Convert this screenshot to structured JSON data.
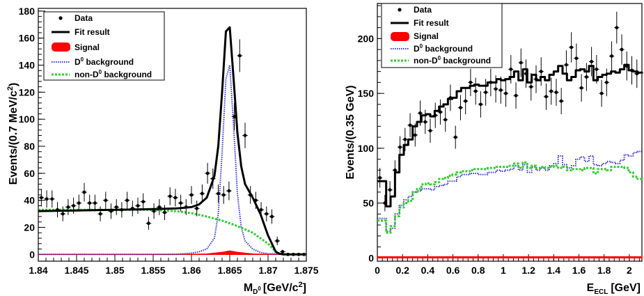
{
  "chart_data": [
    {
      "type": "line",
      "xlabel": "M_D0 [GeV/c2]",
      "xlabel_main": "M",
      "xlabel_sub": "D",
      "xlabel_subsup": "0",
      "xlabel_unit": "[GeV/c",
      "xlabel_unit_sup": "2",
      "xlabel_unit_end": "]",
      "ylabel": "Events/(0.7 MeV/c2)",
      "ylabel_main": "Events/(0.7 MeV/c",
      "ylabel_sup": "2",
      "ylabel_end": ")",
      "xlim": [
        1.84,
        1.875
      ],
      "ylim": [
        -5,
        182
      ],
      "xticks": [
        "1.84",
        "1.845",
        "1.85",
        "1.855",
        "1.86",
        "1.865",
        "1.87",
        "1.875"
      ],
      "xtick_values": [
        1.84,
        1.845,
        1.85,
        1.855,
        1.86,
        1.865,
        1.87,
        1.875
      ],
      "yticks": [
        "0",
        "20",
        "40",
        "60",
        "80",
        "100",
        "120",
        "140",
        "160",
        "180"
      ],
      "ytick_values": [
        0,
        20,
        40,
        60,
        80,
        100,
        120,
        140,
        160,
        180
      ],
      "legend": {
        "position": "top-left",
        "entries": [
          {
            "label": "Data",
            "style": "marker"
          },
          {
            "label": "Fit result",
            "style": "line-black"
          },
          {
            "label": "Signal",
            "style": "fill-red"
          },
          {
            "label": "D0 background",
            "main": "D",
            "sup": "0",
            "rest": " background",
            "style": "dotted-blue"
          },
          {
            "label": "non-D0 background",
            "main": "non-D",
            "sup": "0",
            "rest": " background",
            "style": "dotted-green"
          }
        ]
      },
      "colors": {
        "fit": "#000000",
        "signal": "#ff0000",
        "d0_bkg": "#3333cc",
        "nond0_bkg": "#33cc33",
        "data": "#000000"
      },
      "series": [
        {
          "name": "Data",
          "x": [
            1.8404,
            1.8411,
            1.8418,
            1.8425,
            1.8432,
            1.8439,
            1.8446,
            1.8453,
            1.846,
            1.8467,
            1.8474,
            1.8481,
            1.8488,
            1.8495,
            1.8502,
            1.8509,
            1.8516,
            1.8523,
            1.853,
            1.8537,
            1.8544,
            1.8551,
            1.8558,
            1.8565,
            1.8572,
            1.8579,
            1.8586,
            1.8593,
            1.86,
            1.8607,
            1.8614,
            1.8621,
            1.8628,
            1.8635,
            1.8642,
            1.8649,
            1.8656,
            1.8663,
            1.867,
            1.8677,
            1.8684,
            1.8691,
            1.8698,
            1.8705,
            1.8712,
            1.8719,
            1.8726,
            1.8733,
            1.874,
            1.8747
          ],
          "y": [
            42,
            41,
            41,
            33,
            30,
            35,
            36,
            38,
            46,
            38,
            38,
            30,
            40,
            32,
            35,
            33,
            40,
            34,
            36,
            39,
            23,
            32,
            35,
            31,
            43,
            42,
            38,
            35,
            44,
            34,
            45,
            60,
            56,
            45,
            44,
            47,
            102,
            147,
            88,
            44,
            40,
            33,
            30,
            28,
            10,
            2,
            0,
            0,
            0,
            0
          ],
          "err": [
            6.5,
            6.4,
            6.4,
            5.7,
            5.5,
            5.9,
            6,
            6.2,
            6.8,
            6.2,
            6.2,
            5.5,
            6.3,
            5.7,
            5.9,
            5.7,
            6.3,
            5.8,
            6,
            6.2,
            4.8,
            5.7,
            5.9,
            5.6,
            6.6,
            6.5,
            6.2,
            5.9,
            6.6,
            5.8,
            6.7,
            7.7,
            7.5,
            6.7,
            6.6,
            6.9,
            10.1,
            12.1,
            9.4,
            6.6,
            6.3,
            5.7,
            5.5,
            5.3,
            3.2,
            1.4,
            0,
            0,
            0,
            0
          ]
        },
        {
          "name": "Fit result",
          "x": [
            1.84,
            1.845,
            1.85,
            1.855,
            1.858,
            1.86,
            1.861,
            1.862,
            1.863,
            1.8635,
            1.864,
            1.8645,
            1.865,
            1.8655,
            1.866,
            1.8665,
            1.867,
            1.868,
            1.869,
            1.8695,
            1.87,
            1.8705,
            1.871,
            1.8715,
            1.872,
            1.875
          ],
          "y": [
            32,
            32.5,
            33,
            33.5,
            34,
            35,
            37,
            42,
            58,
            80,
            120,
            165,
            168,
            130,
            90,
            65,
            52,
            42,
            30,
            22,
            14,
            8,
            2,
            0.5,
            0,
            0
          ]
        },
        {
          "name": "Signal",
          "x": [
            1.84,
            1.855,
            1.86,
            1.862,
            1.864,
            1.865,
            1.866,
            1.868,
            1.87,
            1.875
          ],
          "y": [
            0,
            0,
            0.1,
            0.3,
            1.5,
            2.5,
            1.5,
            0.3,
            0.05,
            0
          ]
        },
        {
          "name": "D0 background",
          "x": [
            1.84,
            1.858,
            1.86,
            1.861,
            1.862,
            1.863,
            1.8635,
            1.864,
            1.8645,
            1.865,
            1.8655,
            1.866,
            1.8665,
            1.867,
            1.868,
            1.869,
            1.87,
            1.875
          ],
          "y": [
            0,
            0,
            1,
            2,
            4,
            12,
            30,
            75,
            130,
            140,
            95,
            45,
            20,
            10,
            4,
            1.5,
            0.5,
            0
          ]
        },
        {
          "name": "non-D0 background",
          "x": [
            1.84,
            1.845,
            1.85,
            1.855,
            1.858,
            1.86,
            1.862,
            1.864,
            1.866,
            1.868,
            1.869,
            1.87,
            1.8705,
            1.871,
            1.8715,
            1.872,
            1.875
          ],
          "y": [
            33,
            33,
            33,
            33,
            32,
            30.5,
            28,
            25,
            21,
            16,
            12,
            8,
            5,
            2,
            0.5,
            0,
            0
          ]
        }
      ]
    },
    {
      "type": "line",
      "xlabel": "E_ECL [GeV]",
      "xlabel_main": "E",
      "xlabel_sub": "ECL",
      "xlabel_unit": "[GeV]",
      "ylabel": "Events/(0.35 GeV)",
      "xlim": [
        0,
        2.1
      ],
      "ylim": [
        -3,
        232
      ],
      "xticks": [
        "0",
        "0.2",
        "0.4",
        "0.6",
        "0.8",
        "1",
        "1.2",
        "1.4",
        "1.6",
        "1.8",
        "2"
      ],
      "xtick_values": [
        0,
        0.2,
        0.4,
        0.6,
        0.8,
        1,
        1.2,
        1.4,
        1.6,
        1.8,
        2
      ],
      "yticks": [
        "0",
        "50",
        "100",
        "150",
        "200"
      ],
      "ytick_values": [
        0,
        50,
        100,
        150,
        200
      ],
      "legend": {
        "position": "top-left",
        "entries": [
          {
            "label": "Data",
            "style": "marker"
          },
          {
            "label": "Fit result",
            "style": "line-black"
          },
          {
            "label": "Signal",
            "style": "fill-red"
          },
          {
            "label": "D0 background",
            "main": "D",
            "sup": "0",
            "rest": " background",
            "style": "dotted-blue"
          },
          {
            "label": "non-D0 background",
            "main": "non-D",
            "sup": "0",
            "rest": " background",
            "style": "dotted-green"
          }
        ]
      },
      "colors": {
        "fit": "#000000",
        "signal": "#ff0000",
        "d0_bkg": "#3333cc",
        "nond0_bkg": "#33cc33",
        "data": "#000000"
      },
      "series": [
        {
          "name": "Data",
          "x": [
            0.02,
            0.06,
            0.1,
            0.14,
            0.18,
            0.22,
            0.26,
            0.3,
            0.34,
            0.38,
            0.42,
            0.46,
            0.5,
            0.54,
            0.58,
            0.62,
            0.66,
            0.7,
            0.74,
            0.78,
            0.82,
            0.86,
            0.9,
            0.94,
            0.98,
            1.02,
            1.06,
            1.1,
            1.14,
            1.18,
            1.22,
            1.26,
            1.3,
            1.34,
            1.38,
            1.42,
            1.46,
            1.5,
            1.54,
            1.58,
            1.62,
            1.66,
            1.7,
            1.74,
            1.78,
            1.82,
            1.86,
            1.9,
            1.94,
            1.98,
            2.02,
            2.06
          ],
          "y": [
            73,
            50,
            62,
            80,
            101,
            108,
            121,
            112,
            132,
            124,
            116,
            130,
            133,
            126,
            146,
            110,
            137,
            143,
            160,
            152,
            140,
            151,
            160,
            154,
            153,
            150,
            172,
            148,
            178,
            168,
            156,
            163,
            170,
            147,
            152,
            151,
            143,
            176,
            192,
            182,
            155,
            165,
            179,
            172,
            150,
            160,
            184,
            210,
            190,
            175,
            171,
            168
          ],
          "err": [
            9,
            7.5,
            8,
            9,
            10,
            10.5,
            11,
            10.5,
            11.5,
            11,
            11,
            11.5,
            11.5,
            11,
            12,
            10.5,
            11.5,
            12,
            12.5,
            12.3,
            12,
            12.2,
            12.6,
            12.4,
            12.4,
            12.2,
            13,
            12,
            13,
            13,
            12.5,
            12.7,
            13,
            12,
            12.3,
            12.3,
            12,
            13.3,
            13.8,
            13.5,
            12.5,
            12.8,
            13.4,
            13,
            12.2,
            12.6,
            13.5,
            14.5,
            13.8,
            13.2,
            13,
            13
          ]
        },
        {
          "name": "Fit result",
          "x": [
            0,
            0.035,
            0.07,
            0.105,
            0.14,
            0.175,
            0.21,
            0.245,
            0.28,
            0.315,
            0.35,
            0.385,
            0.42,
            0.455,
            0.49,
            0.525,
            0.56,
            0.595,
            0.63,
            0.665,
            0.7,
            0.735,
            0.77,
            0.805,
            0.84,
            0.875,
            0.91,
            0.945,
            0.98,
            1.015,
            1.05,
            1.085,
            1.12,
            1.155,
            1.19,
            1.225,
            1.26,
            1.295,
            1.33,
            1.365,
            1.4,
            1.435,
            1.47,
            1.505,
            1.54,
            1.575,
            1.61,
            1.645,
            1.68,
            1.715,
            1.75,
            1.785,
            1.82,
            1.855,
            1.89,
            1.925,
            1.96,
            1.995,
            2.03,
            2.065,
            2.1
          ],
          "y": [
            70,
            70,
            47,
            56,
            78,
            94,
            103,
            108,
            120,
            124,
            130,
            131,
            129,
            134,
            138,
            140,
            145,
            146,
            152,
            155,
            155,
            157,
            158,
            157,
            157,
            160,
            160,
            163,
            162,
            163,
            165,
            170,
            162,
            172,
            160,
            167,
            162,
            165,
            162,
            167,
            170,
            175,
            168,
            162,
            165,
            171,
            172,
            170,
            175,
            162,
            165,
            167,
            168,
            170,
            169,
            172,
            176,
            171,
            170,
            169,
            168
          ]
        },
        {
          "name": "Signal",
          "x": [
            0,
            0.5,
            1.0,
            1.5,
            2.0,
            2.1
          ],
          "y": [
            1,
            1,
            1,
            1,
            1,
            1
          ]
        },
        {
          "name": "D0 background",
          "x": [
            0,
            0.035,
            0.07,
            0.105,
            0.14,
            0.175,
            0.21,
            0.245,
            0.28,
            0.315,
            0.35,
            0.385,
            0.42,
            0.455,
            0.49,
            0.525,
            0.56,
            0.595,
            0.63,
            0.665,
            0.7,
            0.735,
            0.77,
            0.805,
            0.84,
            0.875,
            0.91,
            0.945,
            0.98,
            1.015,
            1.05,
            1.085,
            1.12,
            1.155,
            1.19,
            1.225,
            1.26,
            1.295,
            1.33,
            1.365,
            1.4,
            1.435,
            1.47,
            1.505,
            1.54,
            1.575,
            1.61,
            1.645,
            1.68,
            1.715,
            1.75,
            1.785,
            1.82,
            1.855,
            1.89,
            1.925,
            1.96,
            1.995,
            2.03,
            2.065,
            2.1
          ],
          "y": [
            36,
            36,
            24,
            27,
            40,
            48,
            53,
            56,
            60,
            61,
            63,
            63,
            62,
            65,
            66,
            67,
            70,
            70,
            74,
            76,
            76,
            77,
            77,
            76,
            76,
            78,
            78,
            80,
            79,
            80,
            81,
            84,
            80,
            85,
            78,
            83,
            80,
            82,
            80,
            84,
            86,
            93,
            85,
            82,
            84,
            90,
            92,
            88,
            93,
            85,
            84,
            86,
            88,
            87,
            86,
            89,
            94,
            93,
            96,
            97,
            97
          ]
        },
        {
          "name": "non-D0 background",
          "x": [
            0,
            0.035,
            0.07,
            0.105,
            0.14,
            0.175,
            0.21,
            0.245,
            0.28,
            0.315,
            0.35,
            0.385,
            0.42,
            0.455,
            0.49,
            0.525,
            0.56,
            0.595,
            0.63,
            0.665,
            0.7,
            0.735,
            0.77,
            0.805,
            0.84,
            0.875,
            0.91,
            0.945,
            0.98,
            1.015,
            1.05,
            1.085,
            1.12,
            1.155,
            1.19,
            1.225,
            1.26,
            1.295,
            1.33,
            1.365,
            1.4,
            1.435,
            1.47,
            1.505,
            1.54,
            1.575,
            1.61,
            1.645,
            1.68,
            1.715,
            1.75,
            1.785,
            1.82,
            1.855,
            1.89,
            1.925,
            1.96,
            1.995,
            2.03,
            2.065,
            2.1
          ],
          "y": [
            34,
            34,
            23,
            29,
            38,
            46,
            50,
            52,
            60,
            63,
            67,
            68,
            67,
            69,
            72,
            73,
            75,
            76,
            78,
            79,
            79,
            80,
            81,
            81,
            81,
            82,
            82,
            83,
            83,
            83,
            84,
            86,
            82,
            87,
            82,
            84,
            82,
            83,
            82,
            83,
            84,
            82,
            83,
            80,
            81,
            81,
            80,
            82,
            82,
            77,
            81,
            81,
            80,
            83,
            83,
            83,
            82,
            78,
            74,
            72,
            71
          ]
        }
      ]
    }
  ]
}
